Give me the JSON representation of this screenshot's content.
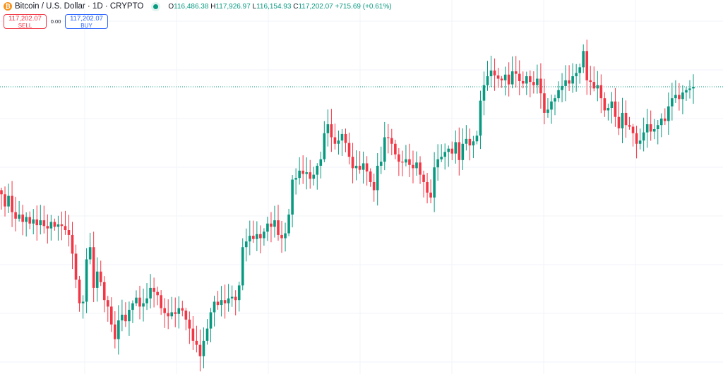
{
  "header": {
    "symbol_title": "Bitcoin / U.S. Dollar · 1D · CRYPTO",
    "icon": "bitcoin-icon",
    "market_status_icon": "market-open-dot",
    "open_label": "O",
    "open": "116,486.38",
    "high_label": "H",
    "high": "117,926.97",
    "low_label": "L",
    "low": "116,154.93",
    "close_label": "C",
    "close": "117,202.07",
    "change": "+715.69 (+0.61%)"
  },
  "trade": {
    "sell_price": "117,202.07",
    "sell_label": "SELL",
    "spread": "0.00",
    "buy_price": "117,202.07",
    "buy_label": "BUY"
  },
  "colors": {
    "up": "#089981",
    "down": "#f23645",
    "grid": "#f0f3fa",
    "last_price_line": "#089981"
  },
  "chart_data": {
    "type": "candlestick",
    "interval": "1D",
    "units": "thousand USD (approximate)",
    "first_open": 104.5,
    "last_price": 117.202,
    "grid": true,
    "closes": [
      104.0,
      102.5,
      103.8,
      101.8,
      101.0,
      101.5,
      100.6,
      101.2,
      100.4,
      100.9,
      100.2,
      100.8,
      100.1,
      99.8,
      100.6,
      100.0,
      100.3,
      100.1,
      99.6,
      99.0,
      96.7,
      93.5,
      90.6,
      90.8,
      96.0,
      97.5,
      92.5,
      94.5,
      93.2,
      91.0,
      90.2,
      88.0,
      86.2,
      88.5,
      89.2,
      88.4,
      89.8,
      90.6,
      91.3,
      90.2,
      90.6,
      91.2,
      92.5,
      92.0,
      91.6,
      90.0,
      89.4,
      89.0,
      89.5,
      89.3,
      90.0,
      89.7,
      88.6,
      87.5,
      86.0,
      85.5,
      84.1,
      86.0,
      87.5,
      89.5,
      90.8,
      90.4,
      91.0,
      90.6,
      91.2,
      91.4,
      91.0,
      92.8,
      97.5,
      98.2,
      98.9,
      98.5,
      99.1,
      98.6,
      99.4,
      100.4,
      100.0,
      100.8,
      99.0,
      98.6,
      99.2,
      101.5,
      105.8,
      106.0,
      106.9,
      106.5,
      106.7,
      105.9,
      106.4,
      107.5,
      108.3,
      111.5,
      112.6,
      111.0,
      110.2,
      110.6,
      111.4,
      110.3,
      108.6,
      107.2,
      107.5,
      107.0,
      107.8,
      106.8,
      105.5,
      104.5,
      107.5,
      108.0,
      111.0,
      110.9,
      110.2,
      108.9,
      108.0,
      107.9,
      108.3,
      107.6,
      107.2,
      107.9,
      106.4,
      105.5,
      104.2,
      103.6,
      107.3,
      108.3,
      108.6,
      109.2,
      109.6,
      109.0,
      110.4,
      108.2,
      110.2,
      110.8,
      110.0,
      110.5,
      111.2,
      115.5,
      117.4,
      118.5,
      119.2,
      118.6,
      118.2,
      118.0,
      118.7,
      117.5,
      119.1,
      118.8,
      117.9,
      117.6,
      118.5,
      117.8,
      117.4,
      118.2,
      116.4,
      114.0,
      114.4,
      115.4,
      115.8,
      116.8,
      117.3,
      118.0,
      117.6,
      118.5,
      118.9,
      119.6,
      121.6,
      118.0,
      117.8,
      117.0,
      117.4,
      115.8,
      114.3,
      114.6,
      115.4,
      113.5,
      112.1,
      114.0,
      112.5,
      112.3,
      111.5,
      110.2,
      110.6,
      111.6,
      112.6,
      111.7,
      112.0,
      112.5,
      113.3,
      113.0,
      114.8,
      115.8,
      116.2,
      115.7,
      116.5,
      116.8,
      117.0,
      117.2
    ]
  }
}
